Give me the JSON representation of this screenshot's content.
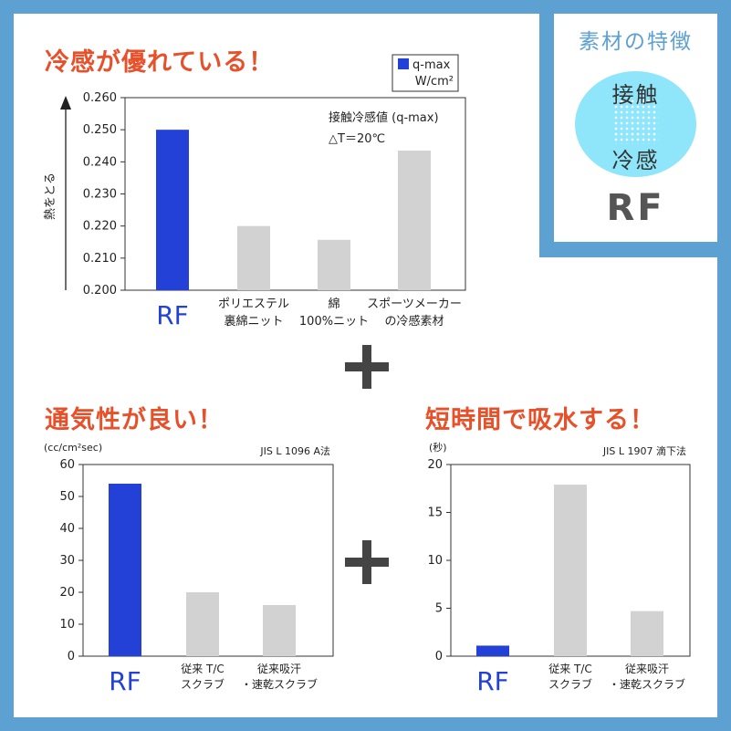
{
  "headlines": {
    "cool": "冷感が優れている！",
    "air": "通気性が良い！",
    "water": "短時間で吸水する！"
  },
  "badge": {
    "title": "素材の特徴",
    "word_top": "接触",
    "word_bottom": "冷感",
    "product": "RF"
  },
  "colors": {
    "frame": "#5da0d2",
    "headline": "#e8502a",
    "rf_bar": "#2341d6",
    "other_bar": "#d2d2d2",
    "badge_circle": "#8fe6fa"
  },
  "chart_data": [
    {
      "type": "bar",
      "categories": [
        "RF",
        "ポリエステル\n裏綿ニット",
        "綿\n100%ニット",
        "スポーツメーカー\nの冷感素材"
      ],
      "series": [
        {
          "name": "q-max W/cm²",
          "values": [
            0.25,
            0.22,
            0.2157,
            0.2435
          ]
        }
      ],
      "ylabel": "熱をとる",
      "ylim": [
        0.2,
        0.26
      ],
      "yticks": [
        "0.200",
        "0.210",
        "0.220",
        "0.230",
        "0.240",
        "0.250",
        "0.260"
      ],
      "annotation": [
        "接触冷感値 (q-max)",
        "△T＝20℃"
      ],
      "legend": {
        "line1": "q-max",
        "line2": "W/cm²",
        "position": "top-right"
      },
      "grid": false
    },
    {
      "type": "bar",
      "categories": [
        "RF",
        "従来 T/C\nスクラブ",
        "従来吸汗\n・速乾スクラブ"
      ],
      "values": [
        54,
        20,
        16
      ],
      "unit_label": "(cc/cm²sec)",
      "method": "JIS L 1096  A法",
      "ylim": [
        0,
        60
      ],
      "yticks": [
        "0",
        "10",
        "20",
        "30",
        "40",
        "50",
        "60"
      ],
      "grid": false
    },
    {
      "type": "bar",
      "categories": [
        "RF",
        "従来 T/C\nスクラブ",
        "従来吸汗\n・速乾スクラブ"
      ],
      "values": [
        1.1,
        17.9,
        4.7
      ],
      "unit_label": "(秒)",
      "method": "JIS L 1907  滴下法",
      "ylim": [
        0,
        20
      ],
      "yticks": [
        "0",
        "5",
        "10",
        "15",
        "20"
      ],
      "grid": false
    }
  ]
}
